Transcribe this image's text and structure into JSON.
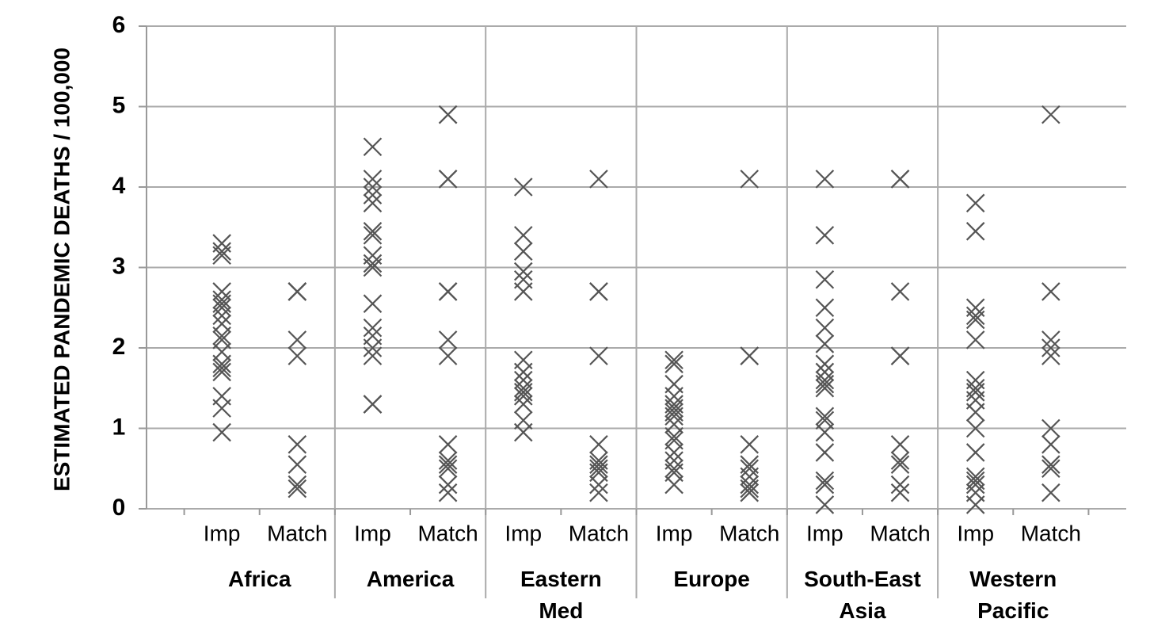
{
  "chart_data": {
    "type": "scatter",
    "y_label": "ESTIMATED PANDEMIC DEATHS / 100,000",
    "groups": [
      "Africa",
      "America",
      "Eastern Med",
      "Europe",
      "South-East Asia",
      "Western Pacific"
    ],
    "categories": [
      "Imp",
      "Match",
      "Imp",
      "Match",
      "Imp",
      "Match",
      "Imp",
      "Match",
      "Imp",
      "Match",
      "Imp",
      "Match"
    ],
    "values": [
      [
        3.3,
        3.2,
        3.15,
        2.7,
        2.6,
        2.55,
        2.5,
        2.4,
        2.3,
        2.15,
        2.1,
        1.95,
        1.8,
        1.75,
        1.7,
        1.4,
        1.25,
        0.95
      ],
      [
        2.7,
        2.7,
        2.7,
        2.1,
        1.9,
        0.8,
        0.55,
        0.3,
        0.25
      ],
      [
        4.5,
        4.1,
        4.0,
        3.9,
        3.8,
        3.45,
        3.4,
        3.15,
        3.05,
        3.0,
        2.55,
        2.25,
        2.15,
        2.0,
        1.9,
        1.3,
        1.3
      ],
      [
        4.9,
        4.9,
        4.1,
        4.1,
        2.7,
        2.7,
        2.1,
        1.9,
        0.8,
        0.6,
        0.55,
        0.5,
        0.3,
        0.2
      ],
      [
        4.0,
        3.4,
        3.2,
        2.95,
        2.85,
        2.7,
        1.85,
        1.7,
        1.6,
        1.5,
        1.45,
        1.4,
        1.3,
        1.1,
        0.95
      ],
      [
        4.1,
        2.7,
        2.7,
        1.9,
        0.8,
        0.6,
        0.55,
        0.5,
        0.45,
        0.3,
        0.2
      ],
      [
        1.85,
        1.8,
        1.55,
        1.4,
        1.3,
        1.25,
        1.2,
        1.15,
        1.05,
        0.9,
        0.85,
        0.7,
        0.6,
        0.5,
        0.45,
        0.3
      ],
      [
        4.1,
        1.9,
        1.9,
        0.8,
        0.55,
        0.5,
        0.4,
        0.3,
        0.25,
        0.2
      ],
      [
        4.1,
        3.4,
        2.85,
        2.5,
        2.25,
        2.05,
        1.8,
        1.7,
        1.6,
        1.55,
        1.5,
        1.15,
        1.1,
        0.95,
        0.7,
        0.35,
        0.3,
        0.05
      ],
      [
        4.1,
        4.1,
        2.7,
        1.9,
        1.9,
        0.8,
        0.6,
        0.55,
        0.3,
        0.2
      ],
      [
        3.8,
        3.45,
        2.5,
        2.4,
        2.35,
        2.1,
        1.6,
        1.5,
        1.45,
        1.35,
        1.2,
        1.0,
        0.7,
        0.4,
        0.35,
        0.3,
        0.2,
        0.05
      ],
      [
        4.9,
        2.7,
        2.1,
        2.0,
        1.9,
        1.0,
        0.8,
        0.55,
        0.5,
        0.2
      ]
    ],
    "color": "#555555",
    "ylim": [
      0,
      6
    ],
    "yticks": [
      0,
      1,
      2,
      3,
      4,
      5,
      6
    ],
    "grid": true
  }
}
